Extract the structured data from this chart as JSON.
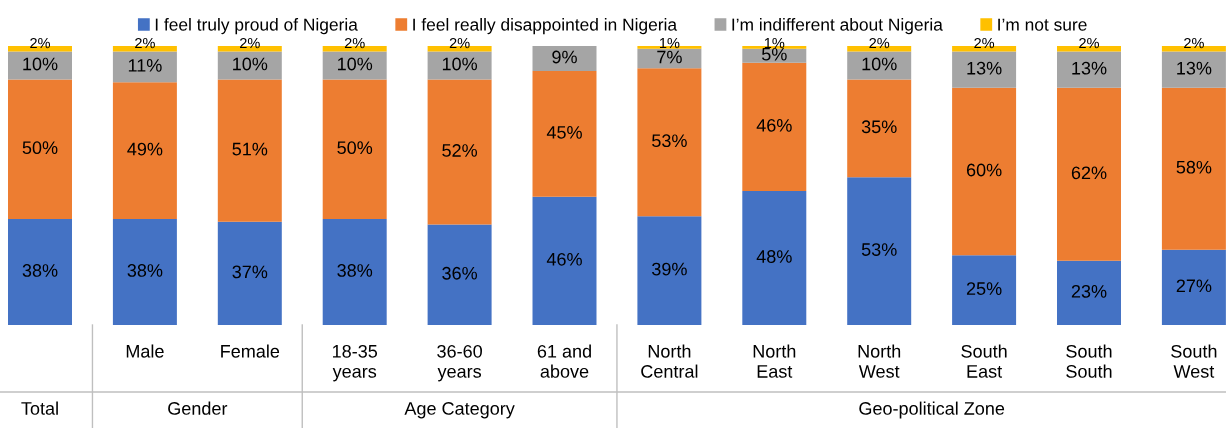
{
  "chart_data": {
    "type": "bar",
    "stacked": true,
    "legend": "top",
    "grid": false,
    "tick_labels": "x",
    "categories": [
      null,
      "Male",
      "Female",
      "18-35\nyears",
      "36-60\nyears",
      "61 and\nabove",
      "North\nCentral",
      "North\nEast",
      "North\nWest",
      "South\nEast",
      "South\nSouth",
      "South\nWest"
    ],
    "annotations": [
      "Total",
      "Gender",
      "Age Category",
      "Geo-political Zone"
    ],
    "series": [
      {
        "name": "I feel truly proud of Nigeria",
        "color": "#4472c4",
        "values": [
          38,
          38,
          37,
          38,
          36,
          46,
          39,
          48,
          53,
          25,
          23,
          27
        ],
        "value_labels": [
          "38%",
          "38%",
          "37%",
          "38%",
          "36%",
          "46%",
          "39%",
          "48%",
          "53%",
          "25%",
          "23%",
          "27%"
        ]
      },
      {
        "name": "I feel really disappointed in Nigeria",
        "color": "#ed7d31",
        "values": [
          50,
          49,
          51,
          50,
          52,
          45,
          53,
          46,
          35,
          60,
          62,
          58
        ],
        "value_labels": [
          "50%",
          "49%",
          "51%",
          "50%",
          "52%",
          "45%",
          "53%",
          "46%",
          "35%",
          "60%",
          "62%",
          "58%"
        ]
      },
      {
        "name": "I’m indifferent about Nigeria",
        "color": "#a5a5a5",
        "values": [
          10,
          11,
          10,
          10,
          10,
          9,
          7,
          5,
          10,
          13,
          13,
          13
        ],
        "value_labels": [
          "10%",
          "11%",
          "10%",
          "10%",
          "10%",
          "9%",
          "7%",
          "5%",
          "10%",
          "13%",
          "13%",
          "13%"
        ]
      },
      {
        "name": "I’m not sure",
        "color": "#ffc000",
        "values": [
          2,
          2,
          2,
          2,
          2,
          null,
          1,
          1,
          2,
          2,
          2,
          2
        ],
        "value_labels": [
          "2%",
          "2%",
          "2%",
          "2%",
          "2%",
          null,
          "1%",
          "1%",
          "2%",
          "2%",
          "2%",
          "2%"
        ]
      }
    ]
  }
}
